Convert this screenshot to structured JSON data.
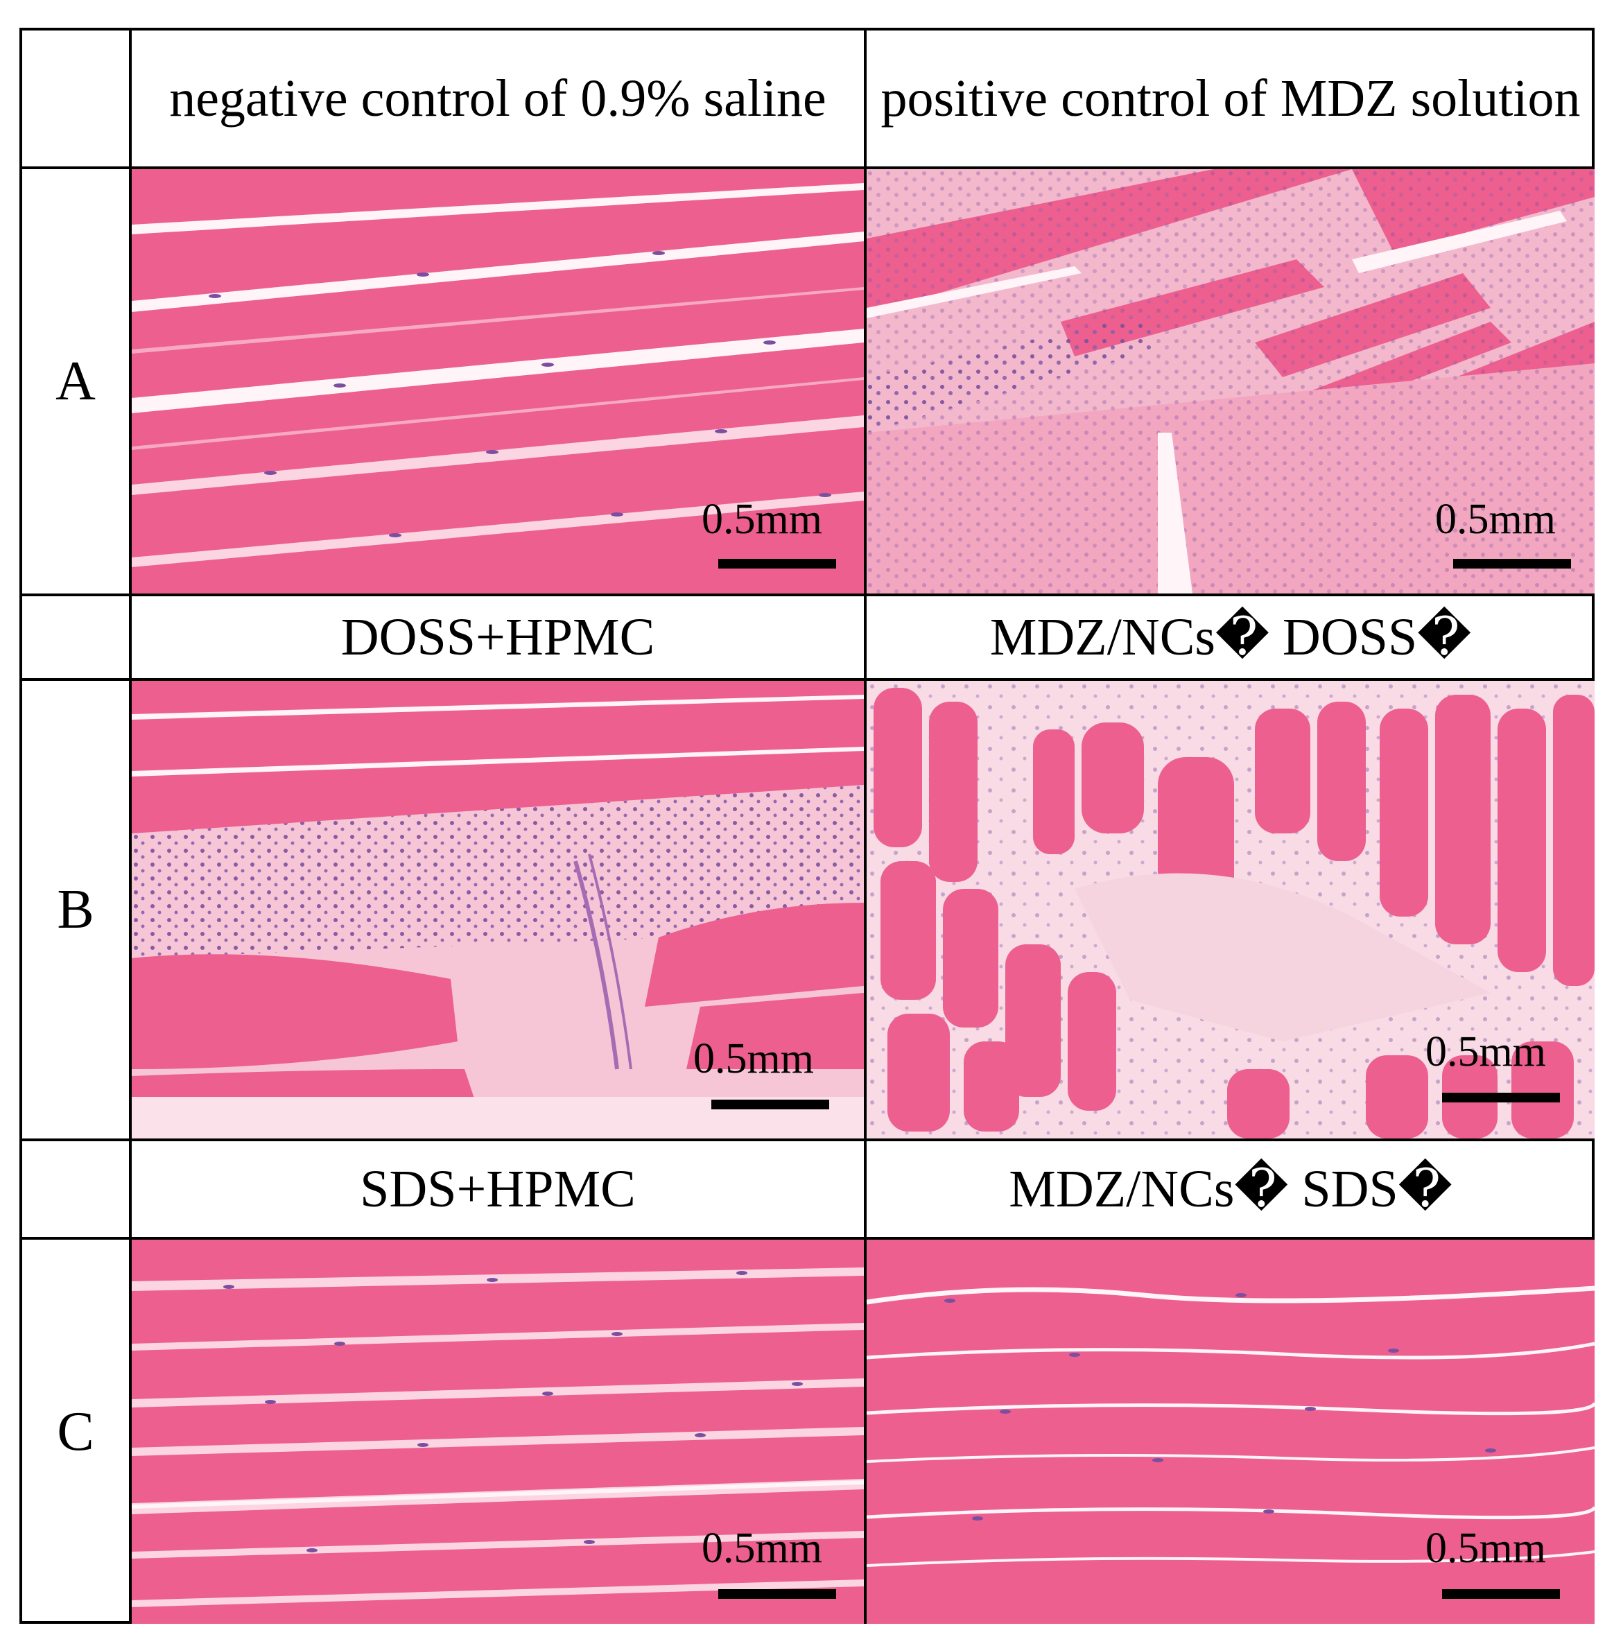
{
  "headers": {
    "row1": {
      "left": "negative control of 0.9% saline",
      "right": "positive control of MDZ solution"
    },
    "row2": {
      "left": "DOSS+HPMC",
      "right": "MDZ/NCs� DOSS�"
    },
    "row3": {
      "left": "SDS+HPMC",
      "right": "MDZ/NCs� SDS�"
    }
  },
  "rows": [
    {
      "label": "A"
    },
    {
      "label": "B"
    },
    {
      "label": "C"
    }
  ],
  "scale_label": "0.5mm",
  "colors": {
    "muscle": "#ec5f8f",
    "stroma": "#f4b8cc",
    "gap": "#fff4f7",
    "nucleus": "#7a4fa0"
  },
  "panels": [
    {
      "id": "A-left",
      "tissue": "parallel muscle fibers"
    },
    {
      "id": "A-right",
      "tissue": "inflamed muscle with infiltration"
    },
    {
      "id": "B-left",
      "tissue": "muscle with inflammatory band"
    },
    {
      "id": "B-right",
      "tissue": "cross-sectioned muscle bundles"
    },
    {
      "id": "C-left",
      "tissue": "parallel muscle fibers"
    },
    {
      "id": "C-right",
      "tissue": "parallel muscle fibers"
    }
  ]
}
